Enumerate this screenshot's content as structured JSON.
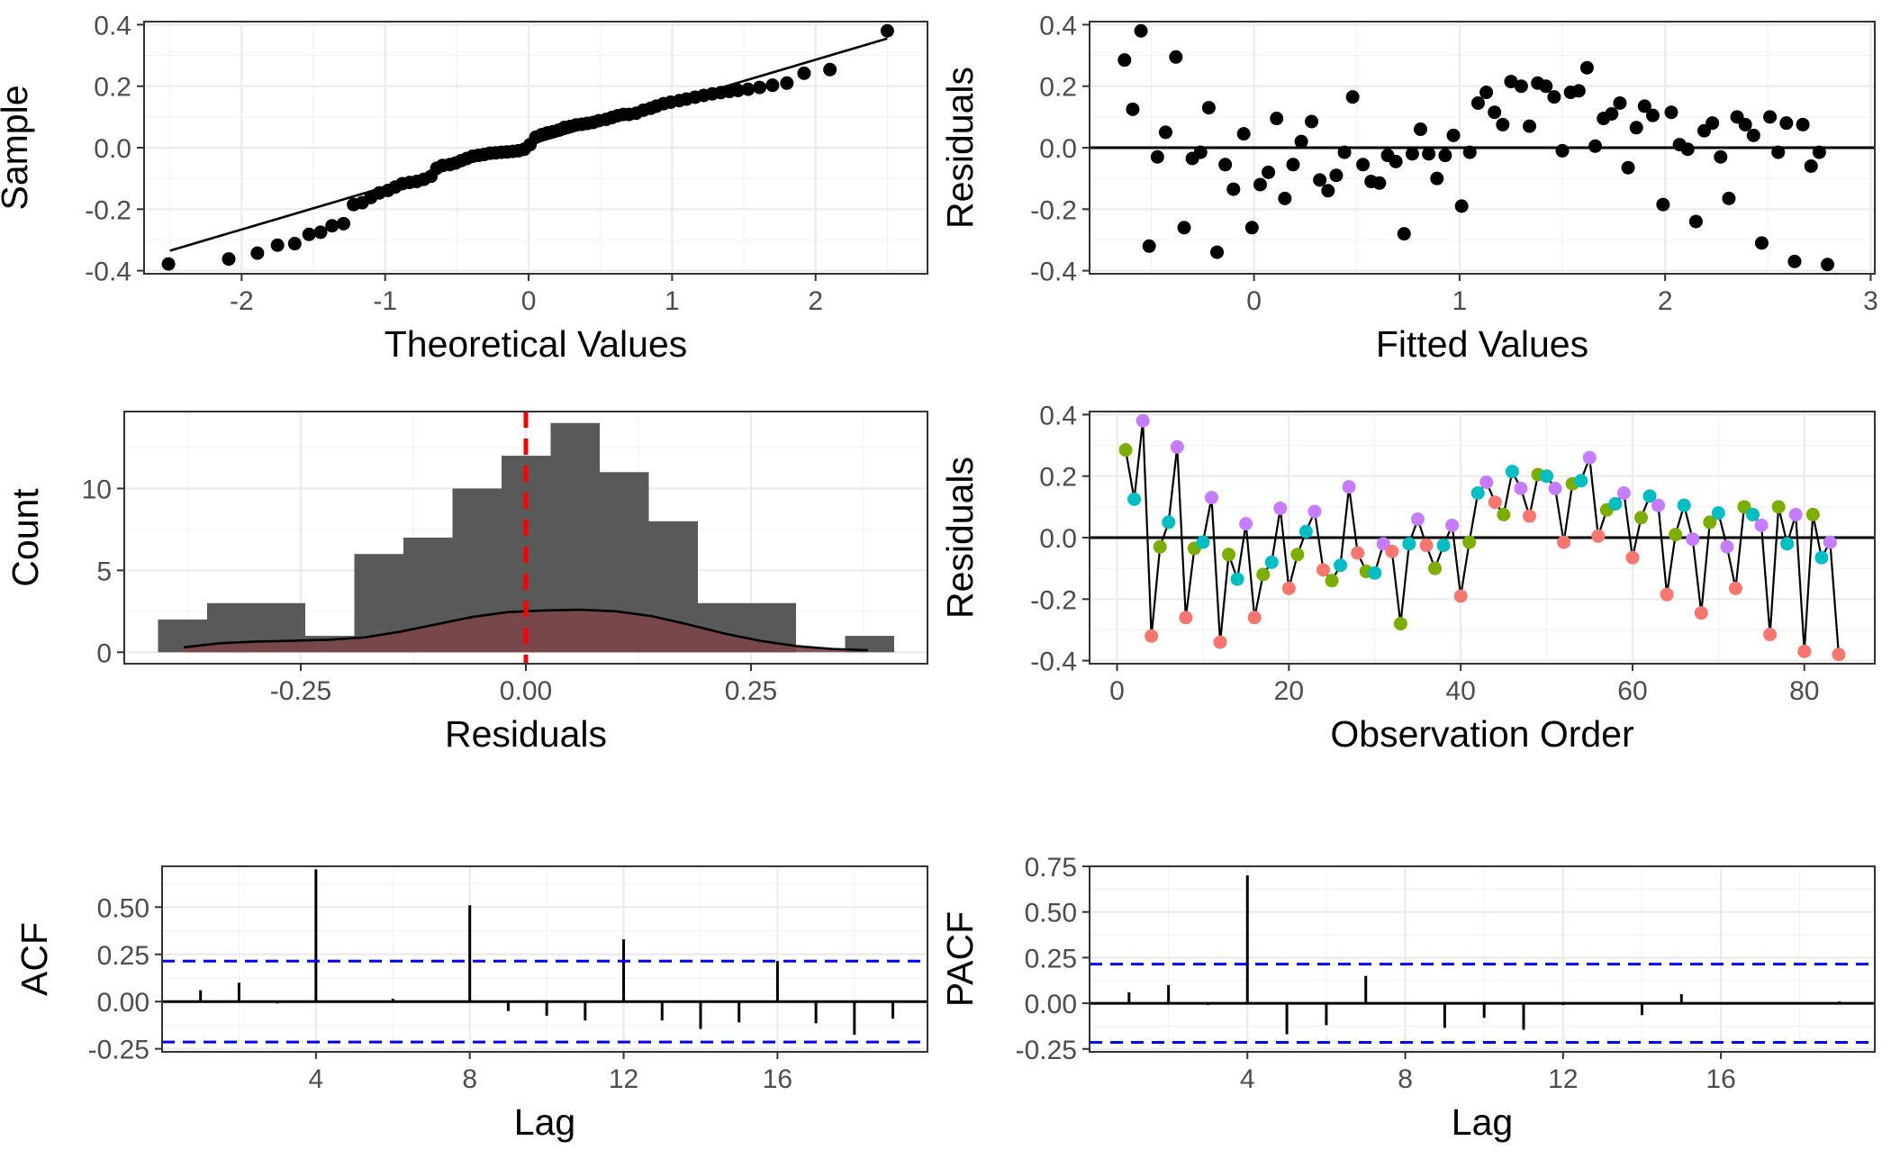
{
  "colors": {
    "points": "#000000",
    "hist_fill": "#595959",
    "density_fill": "#7a4547",
    "mean_line": "#ff0000",
    "conf_band": "#0000ff",
    "groups": [
      "#f8766d",
      "#7cae00",
      "#00bfc4",
      "#c77cff"
    ]
  },
  "chart_data": [
    {
      "id": "qq",
      "type": "scatter",
      "xlabel": "Theoretical Values",
      "ylabel": "Sample",
      "xlim": [
        -2.68,
        2.78
      ],
      "ylim": [
        -0.41,
        0.41
      ],
      "xticks": [
        -2,
        -1,
        0,
        1,
        2
      ],
      "yticks": [
        -0.4,
        -0.2,
        0.0,
        0.2,
        0.4
      ],
      "xtick_labels": [
        "-2",
        "-1",
        "0",
        "1",
        "2"
      ],
      "ytick_labels": [
        "-0.4",
        "-0.2",
        "0.0",
        "0.2",
        "0.4"
      ],
      "reference_line": {
        "x": [
          -2.5,
          2.5
        ],
        "y": [
          -0.335,
          0.355
        ]
      },
      "points": [
        [
          -2.51,
          -0.378
        ],
        [
          -2.09,
          -0.362
        ],
        [
          -1.89,
          -0.343
        ],
        [
          -1.75,
          -0.317
        ],
        [
          -1.63,
          -0.312
        ],
        [
          -1.53,
          -0.282
        ],
        [
          -1.45,
          -0.275
        ],
        [
          -1.37,
          -0.254
        ],
        [
          -1.29,
          -0.247
        ],
        [
          -1.22,
          -0.185
        ],
        [
          -1.16,
          -0.179
        ],
        [
          -1.1,
          -0.162
        ],
        [
          -1.04,
          -0.147
        ],
        [
          -0.98,
          -0.139
        ],
        [
          -0.93,
          -0.128
        ],
        [
          -0.88,
          -0.117
        ],
        [
          -0.83,
          -0.113
        ],
        [
          -0.78,
          -0.11
        ],
        [
          -0.73,
          -0.103
        ],
        [
          -0.68,
          -0.093
        ],
        [
          -0.64,
          -0.067
        ],
        [
          -0.6,
          -0.058
        ],
        [
          -0.55,
          -0.055
        ],
        [
          -0.51,
          -0.05
        ],
        [
          -0.47,
          -0.042
        ],
        [
          -0.43,
          -0.035
        ],
        [
          -0.39,
          -0.028
        ],
        [
          -0.35,
          -0.025
        ],
        [
          -0.31,
          -0.022
        ],
        [
          -0.27,
          -0.018
        ],
        [
          -0.23,
          -0.017
        ],
        [
          -0.19,
          -0.015
        ],
        [
          -0.15,
          -0.014
        ],
        [
          -0.11,
          -0.012
        ],
        [
          -0.07,
          -0.01
        ],
        [
          -0.03,
          -0.005
        ],
        [
          0.01,
          0.01
        ],
        [
          0.05,
          0.034
        ],
        [
          0.09,
          0.042
        ],
        [
          0.13,
          0.048
        ],
        [
          0.17,
          0.052
        ],
        [
          0.21,
          0.057
        ],
        [
          0.25,
          0.066
        ],
        [
          0.29,
          0.069
        ],
        [
          0.33,
          0.074
        ],
        [
          0.37,
          0.076
        ],
        [
          0.41,
          0.079
        ],
        [
          0.45,
          0.082
        ],
        [
          0.49,
          0.088
        ],
        [
          0.54,
          0.092
        ],
        [
          0.58,
          0.098
        ],
        [
          0.62,
          0.104
        ],
        [
          0.66,
          0.108
        ],
        [
          0.7,
          0.108
        ],
        [
          0.75,
          0.112
        ],
        [
          0.8,
          0.122
        ],
        [
          0.85,
          0.128
        ],
        [
          0.89,
          0.135
        ],
        [
          0.94,
          0.143
        ],
        [
          0.99,
          0.148
        ],
        [
          1.05,
          0.153
        ],
        [
          1.1,
          0.158
        ],
        [
          1.16,
          0.164
        ],
        [
          1.22,
          0.17
        ],
        [
          1.28,
          0.175
        ],
        [
          1.34,
          0.179
        ],
        [
          1.4,
          0.183
        ],
        [
          1.46,
          0.186
        ],
        [
          1.53,
          0.19
        ],
        [
          1.61,
          0.196
        ],
        [
          1.7,
          0.203
        ],
        [
          1.8,
          0.21
        ],
        [
          1.92,
          0.242
        ],
        [
          2.1,
          0.254
        ],
        [
          2.5,
          0.38
        ]
      ]
    },
    {
      "id": "resid_fitted",
      "type": "scatter",
      "xlabel": "Fitted Values",
      "ylabel": "Residuals",
      "xlim": [
        -0.8,
        3.02
      ],
      "ylim": [
        -0.41,
        0.41
      ],
      "xticks": [
        0,
        1,
        2,
        3
      ],
      "yticks": [
        -0.4,
        -0.2,
        0.0,
        0.2,
        0.4
      ],
      "xtick_labels": [
        "0",
        "1",
        "2",
        "3"
      ],
      "ytick_labels": [
        "-0.4",
        "-0.2",
        "0.0",
        "0.2",
        "0.4"
      ],
      "hline": 0,
      "points": [
        [
          -0.63,
          0.285
        ],
        [
          -0.59,
          0.125
        ],
        [
          -0.55,
          0.38
        ],
        [
          -0.51,
          -0.32
        ],
        [
          -0.47,
          -0.03
        ],
        [
          -0.43,
          0.05
        ],
        [
          -0.38,
          0.295
        ],
        [
          -0.34,
          -0.26
        ],
        [
          -0.3,
          -0.035
        ],
        [
          -0.26,
          -0.015
        ],
        [
          -0.22,
          0.13
        ],
        [
          -0.18,
          -0.34
        ],
        [
          -0.14,
          -0.055
        ],
        [
          -0.1,
          -0.135
        ],
        [
          -0.05,
          0.045
        ],
        [
          -0.01,
          -0.26
        ],
        [
          0.03,
          -0.12
        ],
        [
          0.07,
          -0.08
        ],
        [
          0.11,
          0.095
        ],
        [
          0.15,
          -0.165
        ],
        [
          0.19,
          -0.055
        ],
        [
          0.23,
          0.02
        ],
        [
          0.28,
          0.085
        ],
        [
          0.32,
          -0.105
        ],
        [
          0.36,
          -0.14
        ],
        [
          0.4,
          -0.09
        ],
        [
          0.44,
          -0.015
        ],
        [
          0.48,
          0.165
        ],
        [
          0.53,
          -0.055
        ],
        [
          0.57,
          -0.11
        ],
        [
          0.61,
          -0.115
        ],
        [
          0.65,
          -0.025
        ],
        [
          0.69,
          -0.045
        ],
        [
          0.73,
          -0.28
        ],
        [
          0.77,
          -0.02
        ],
        [
          0.81,
          0.06
        ],
        [
          0.85,
          -0.02
        ],
        [
          0.89,
          -0.1
        ],
        [
          0.93,
          -0.025
        ],
        [
          0.97,
          0.04
        ],
        [
          1.01,
          -0.19
        ],
        [
          1.05,
          -0.015
        ],
        [
          1.09,
          0.145
        ],
        [
          1.13,
          0.18
        ],
        [
          1.17,
          0.115
        ],
        [
          1.21,
          0.075
        ],
        [
          1.25,
          0.215
        ],
        [
          1.3,
          0.2
        ],
        [
          1.34,
          0.07
        ],
        [
          1.38,
          0.21
        ],
        [
          1.42,
          0.2
        ],
        [
          1.46,
          0.165
        ],
        [
          1.5,
          -0.01
        ],
        [
          1.54,
          0.18
        ],
        [
          1.58,
          0.185
        ],
        [
          1.62,
          0.26
        ],
        [
          1.66,
          0.005
        ],
        [
          1.7,
          0.095
        ],
        [
          1.74,
          0.11
        ],
        [
          1.78,
          0.145
        ],
        [
          1.82,
          -0.065
        ],
        [
          1.86,
          0.065
        ],
        [
          1.9,
          0.135
        ],
        [
          1.94,
          0.105
        ],
        [
          1.99,
          -0.185
        ],
        [
          2.03,
          0.115
        ],
        [
          2.07,
          0.01
        ],
        [
          2.11,
          -0.005
        ],
        [
          2.15,
          -0.24
        ],
        [
          2.19,
          0.055
        ],
        [
          2.23,
          0.08
        ],
        [
          2.27,
          -0.03
        ],
        [
          2.31,
          -0.165
        ],
        [
          2.35,
          0.1
        ],
        [
          2.39,
          0.075
        ],
        [
          2.43,
          0.04
        ],
        [
          2.47,
          -0.31
        ],
        [
          2.51,
          0.1
        ],
        [
          2.55,
          -0.015
        ],
        [
          2.59,
          0.08
        ],
        [
          2.63,
          -0.37
        ],
        [
          2.67,
          0.075
        ],
        [
          2.71,
          -0.06
        ],
        [
          2.75,
          -0.015
        ],
        [
          2.79,
          -0.38
        ]
      ]
    },
    {
      "id": "histogram",
      "type": "bar",
      "xlabel": "Residuals",
      "ylabel": "Count",
      "xlim": [
        -0.446,
        0.446
      ],
      "ylim": [
        -0.7,
        14.7
      ],
      "xticks": [
        -0.25,
        0.0,
        0.25
      ],
      "yticks": [
        0,
        5,
        10
      ],
      "xtick_labels": [
        "-0.25",
        "0.00",
        "0.25"
      ],
      "ytick_labels": [
        "0",
        "5",
        "10"
      ],
      "bin_width": 0.0545,
      "bins": [
        {
          "x0": -0.4085,
          "count": 2
        },
        {
          "x0": -0.354,
          "count": 3
        },
        {
          "x0": -0.2995,
          "count": 3
        },
        {
          "x0": -0.245,
          "count": 1
        },
        {
          "x0": -0.1905,
          "count": 6
        },
        {
          "x0": -0.136,
          "count": 7
        },
        {
          "x0": -0.0815,
          "count": 10
        },
        {
          "x0": -0.027,
          "count": 12
        },
        {
          "x0": 0.0275,
          "count": 14
        },
        {
          "x0": 0.082,
          "count": 11
        },
        {
          "x0": 0.1365,
          "count": 8
        },
        {
          "x0": 0.191,
          "count": 3
        },
        {
          "x0": 0.2455,
          "count": 3
        },
        {
          "x0": 0.3,
          "count": 0
        },
        {
          "x0": 0.3545,
          "count": 1
        }
      ],
      "vline": 0.0,
      "density_curve": [
        [
          -0.38,
          0.3
        ],
        [
          -0.34,
          0.55
        ],
        [
          -0.3,
          0.65
        ],
        [
          -0.26,
          0.7
        ],
        [
          -0.22,
          0.76
        ],
        [
          -0.18,
          0.9
        ],
        [
          -0.14,
          1.25
        ],
        [
          -0.1,
          1.7
        ],
        [
          -0.06,
          2.15
        ],
        [
          -0.02,
          2.45
        ],
        [
          0.02,
          2.55
        ],
        [
          0.06,
          2.6
        ],
        [
          0.1,
          2.5
        ],
        [
          0.14,
          2.2
        ],
        [
          0.18,
          1.7
        ],
        [
          0.22,
          1.15
        ],
        [
          0.26,
          0.7
        ],
        [
          0.3,
          0.38
        ],
        [
          0.34,
          0.2
        ],
        [
          0.38,
          0.12
        ]
      ]
    },
    {
      "id": "resid_order",
      "type": "line",
      "xlabel": "Observation Order",
      "ylabel": "Residuals",
      "xlim": [
        -3.2,
        88.2
      ],
      "ylim": [
        -0.41,
        0.41
      ],
      "xticks": [
        0,
        20,
        40,
        60,
        80
      ],
      "yticks": [
        -0.4,
        -0.2,
        0.0,
        0.2,
        0.4
      ],
      "xtick_labels": [
        "0",
        "20",
        "40",
        "60",
        "80"
      ],
      "ytick_labels": [
        "-0.4",
        "-0.2",
        "0.0",
        "0.2",
        "0.4"
      ],
      "hline": 0,
      "values": [
        0.285,
        0.125,
        0.38,
        -0.32,
        -0.03,
        0.05,
        0.295,
        -0.26,
        -0.035,
        -0.015,
        0.13,
        -0.34,
        -0.055,
        -0.135,
        0.045,
        -0.26,
        -0.12,
        -0.08,
        0.095,
        -0.165,
        -0.055,
        0.02,
        0.085,
        -0.105,
        -0.14,
        -0.09,
        0.165,
        -0.05,
        -0.11,
        -0.115,
        -0.02,
        -0.045,
        -0.28,
        -0.02,
        0.06,
        -0.025,
        -0.1,
        -0.025,
        0.04,
        -0.19,
        -0.015,
        0.145,
        0.18,
        0.115,
        0.075,
        0.215,
        0.16,
        0.07,
        0.205,
        0.2,
        0.16,
        -0.015,
        0.175,
        0.185,
        0.26,
        0.005,
        0.09,
        0.11,
        0.145,
        -0.065,
        0.065,
        0.135,
        0.105,
        -0.185,
        0.01,
        0.105,
        -0.005,
        -0.245,
        0.05,
        0.08,
        -0.03,
        -0.165,
        0.1,
        0.075,
        0.04,
        -0.315,
        0.1,
        -0.02,
        0.075,
        -0.37,
        0.075,
        -0.065,
        -0.015,
        -0.38
      ],
      "groups": [
        1,
        2,
        3,
        0,
        1,
        2,
        3,
        0,
        1,
        2,
        3,
        0,
        1,
        2,
        3,
        0,
        1,
        2,
        3,
        0,
        1,
        2,
        3,
        0,
        1,
        2,
        3,
        0,
        1,
        2,
        3,
        0,
        1,
        2,
        3,
        0,
        1,
        2,
        3,
        0,
        1,
        2,
        3,
        0,
        1,
        2,
        3,
        0,
        1,
        2,
        3,
        0,
        1,
        2,
        3,
        0,
        1,
        2,
        3,
        0,
        1,
        2,
        3,
        0,
        1,
        2,
        3,
        0,
        1,
        2,
        3,
        0,
        1,
        2,
        3,
        0,
        1,
        2,
        3,
        0,
        1,
        2,
        3,
        0
      ]
    },
    {
      "id": "acf",
      "type": "bar",
      "xlabel": "Lag",
      "ylabel": "ACF",
      "xlim": [
        0,
        19.9
      ],
      "ylim": [
        -0.266,
        0.716
      ],
      "xticks": [
        4,
        8,
        12,
        16
      ],
      "yticks": [
        -0.25,
        0.0,
        0.25,
        0.5
      ],
      "xtick_labels": [
        "4",
        "8",
        "12",
        "16"
      ],
      "ytick_labels": [
        "-0.25",
        "0.00",
        "0.25",
        "0.50"
      ],
      "conf_limit": 0.214,
      "lags": [
        1,
        2,
        3,
        4,
        5,
        6,
        7,
        8,
        9,
        10,
        11,
        12,
        13,
        14,
        15,
        16,
        17,
        18,
        19
      ],
      "values": [
        0.06,
        0.1,
        -0.01,
        0.7,
        0.0,
        0.015,
        0.0,
        0.51,
        -0.05,
        -0.075,
        -0.1,
        0.33,
        -0.1,
        -0.145,
        -0.11,
        0.215,
        -0.115,
        -0.175,
        -0.09
      ]
    },
    {
      "id": "pacf",
      "type": "bar",
      "xlabel": "Lag",
      "ylabel": "PACF",
      "xlim": [
        0,
        19.9
      ],
      "ylim": [
        -0.266,
        0.75
      ],
      "xticks": [
        4,
        8,
        12,
        16
      ],
      "yticks": [
        -0.25,
        0.0,
        0.25,
        0.5,
        0.75
      ],
      "xtick_labels": [
        "4",
        "8",
        "12",
        "16"
      ],
      "ytick_labels": [
        "-0.25",
        "0.00",
        "0.25",
        "0.50",
        "0.75"
      ],
      "conf_limit": 0.214,
      "lags": [
        1,
        2,
        3,
        4,
        5,
        6,
        7,
        8,
        9,
        10,
        11,
        12,
        13,
        14,
        15,
        16,
        17,
        18,
        19
      ],
      "values": [
        0.06,
        0.1,
        -0.01,
        0.7,
        -0.17,
        -0.12,
        0.15,
        0.0,
        -0.135,
        -0.08,
        -0.145,
        -0.01,
        0.0,
        -0.065,
        0.05,
        0.0,
        -0.005,
        0.0,
        0.01
      ]
    }
  ]
}
